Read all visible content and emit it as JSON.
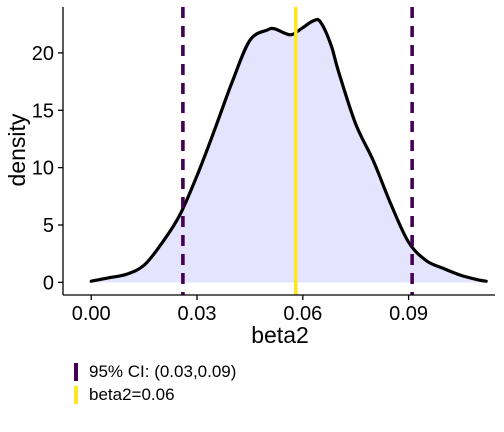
{
  "chart_data": {
    "type": "area",
    "xlabel": "beta2",
    "ylabel": "density",
    "xlim": [
      -0.008,
      0.1145
    ],
    "ylim": [
      -1.1,
      24.0
    ],
    "x_ticks": [
      0.0,
      0.03,
      0.06,
      0.09
    ],
    "x_tick_labels": [
      "0.00",
      "0.03",
      "0.06",
      "0.09"
    ],
    "y_ticks": [
      0,
      5,
      10,
      15,
      20
    ],
    "y_tick_labels": [
      "0",
      "5",
      "10",
      "15",
      "20"
    ],
    "grid": false,
    "legend_placement": "bottom-left",
    "density": {
      "x": [
        0.0,
        0.005,
        0.01,
        0.015,
        0.02,
        0.025,
        0.03,
        0.035,
        0.04,
        0.045,
        0.05,
        0.052,
        0.055,
        0.057,
        0.06,
        0.063,
        0.065,
        0.068,
        0.07,
        0.075,
        0.08,
        0.085,
        0.09,
        0.095,
        0.1,
        0.105,
        0.11,
        0.112
      ],
      "y": [
        0.1,
        0.4,
        0.7,
        1.5,
        3.4,
        5.8,
        9.3,
        13.3,
        17.5,
        21.1,
        22.0,
        22.1,
        21.7,
        21.6,
        22.2,
        22.8,
        22.7,
        20.7,
        18.5,
        13.8,
        10.6,
        6.8,
        3.5,
        1.9,
        1.2,
        0.6,
        0.2,
        0.1
      ],
      "fill_color": "#e4e4ff",
      "line_color": "#000000"
    },
    "reference_lines": [
      {
        "name": "95% CI: (0.03,0.09)",
        "x": [
          0.026,
          0.091
        ],
        "style": "dashed",
        "color": "#440154"
      },
      {
        "name": "beta2=0.06",
        "x": [
          0.058
        ],
        "style": "solid",
        "color": "#fde725"
      }
    ]
  }
}
